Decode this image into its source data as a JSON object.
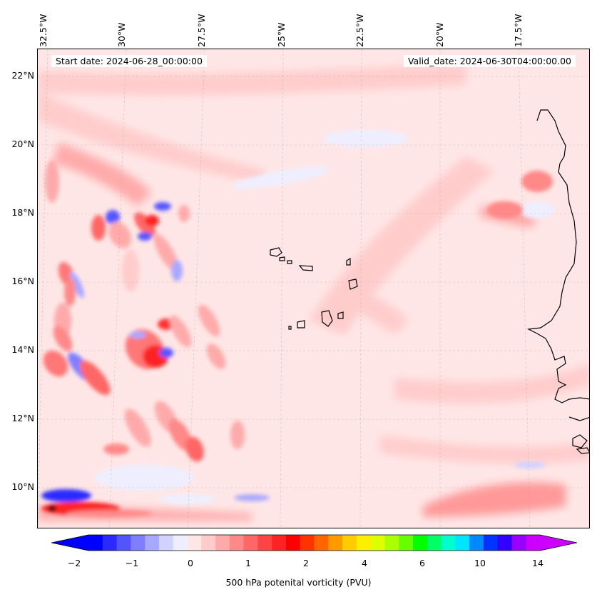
{
  "header": {
    "start_date": "Start date: 2024-06-28_00:00:00",
    "valid_date": "Valid_date: 2024-06-30T04:00:00.00"
  },
  "map": {
    "projection": "lat-lon regional",
    "region": "Eastern tropical Atlantic / Cape Verde / West Africa coast",
    "longitude_labels": [
      "32.5°W",
      "30°W",
      "27.5°W",
      "25°W",
      "22.5°W",
      "20°W",
      "17.5°W"
    ],
    "latitude_labels": [
      "22°N",
      "20°N",
      "18°N",
      "16°N",
      "14°N",
      "12°N",
      "10°N"
    ],
    "gridlines": true,
    "field": "500 hPa potential vorticity",
    "background_color": "#ffe6e6",
    "coastline_color": "#000000"
  },
  "colorbar": {
    "label": "500 hPa potenital vorticity (PVU)",
    "tick_labels": [
      "−2",
      "−1",
      "0",
      "1",
      "2",
      "4",
      "6",
      "10",
      "14"
    ],
    "extend": "both",
    "colors": [
      "#0000ff",
      "#2a2aff",
      "#5454ff",
      "#7e7eff",
      "#a8a8ff",
      "#d2d2ff",
      "#eeeeff",
      "#ffe6e6",
      "#ffcccc",
      "#ffaaaa",
      "#ff8888",
      "#ff6666",
      "#ff4444",
      "#ff2222",
      "#ff0000",
      "#ff3300",
      "#ff6600",
      "#ff9900",
      "#ffcc00",
      "#ffee00",
      "#ddff00",
      "#aaff00",
      "#66ff00",
      "#00ff00",
      "#00ff66",
      "#00ffcc",
      "#00e5ff",
      "#0088ff",
      "#0033ff",
      "#3300ff",
      "#9900ff",
      "#cc00ff"
    ],
    "low_extend_color": "#0000ff",
    "high_extend_color": "#cc00ff"
  }
}
